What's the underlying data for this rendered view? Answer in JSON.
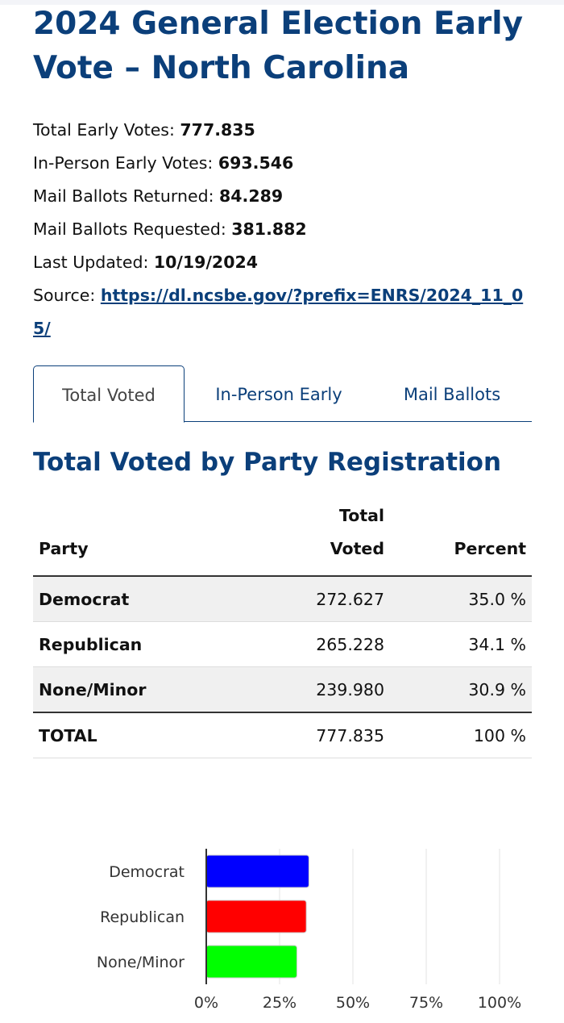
{
  "page": {
    "title": "2024 General Election Early Vote – North Carolina"
  },
  "stats": {
    "total_early_label": "Total Early Votes: ",
    "total_early_value": "777.835",
    "in_person_label": "In-Person Early Votes: ",
    "in_person_value": "693.546",
    "mail_returned_label": "Mail Ballots Returned: ",
    "mail_returned_value": "84.289",
    "mail_requested_label": "Mail Ballots Requested: ",
    "mail_requested_value": "381.882",
    "last_updated_label": "Last Updated: ",
    "last_updated_value": "10/19/2024",
    "source_label": "Source: ",
    "source_link": "https://dl.ncsbe.gov/?prefix=ENRS/2024_11_05/"
  },
  "tabs": [
    {
      "label": "Total Voted",
      "active": true
    },
    {
      "label": "In-Person Early",
      "active": false
    },
    {
      "label": "Mail Ballots",
      "active": false
    }
  ],
  "section": {
    "title": "Total Voted by Party Registration"
  },
  "table": {
    "headers": {
      "party": "Party",
      "voted_line1": "Total",
      "voted_line2": "Voted",
      "percent": "Percent"
    },
    "rows": [
      {
        "party": "Democrat",
        "voted": "272.627",
        "percent": "35.0 %"
      },
      {
        "party": "Republican",
        "voted": "265.228",
        "percent": "34.1 %"
      },
      {
        "party": "None/Minor",
        "voted": "239.980",
        "percent": "30.9 %"
      }
    ],
    "total": {
      "party": "TOTAL",
      "voted": "777.835",
      "percent": "100 %"
    }
  },
  "chart_data": {
    "type": "bar",
    "orientation": "horizontal",
    "categories": [
      "Democrat",
      "Republican",
      "None/Minor"
    ],
    "values": [
      35.0,
      34.1,
      30.9
    ],
    "colors": [
      "#0000ff",
      "#ff0000",
      "#00ff00"
    ],
    "xlim": [
      0,
      100
    ],
    "x_ticks": [
      "0%",
      "25%",
      "50%",
      "75%",
      "100%"
    ],
    "grid": true
  }
}
